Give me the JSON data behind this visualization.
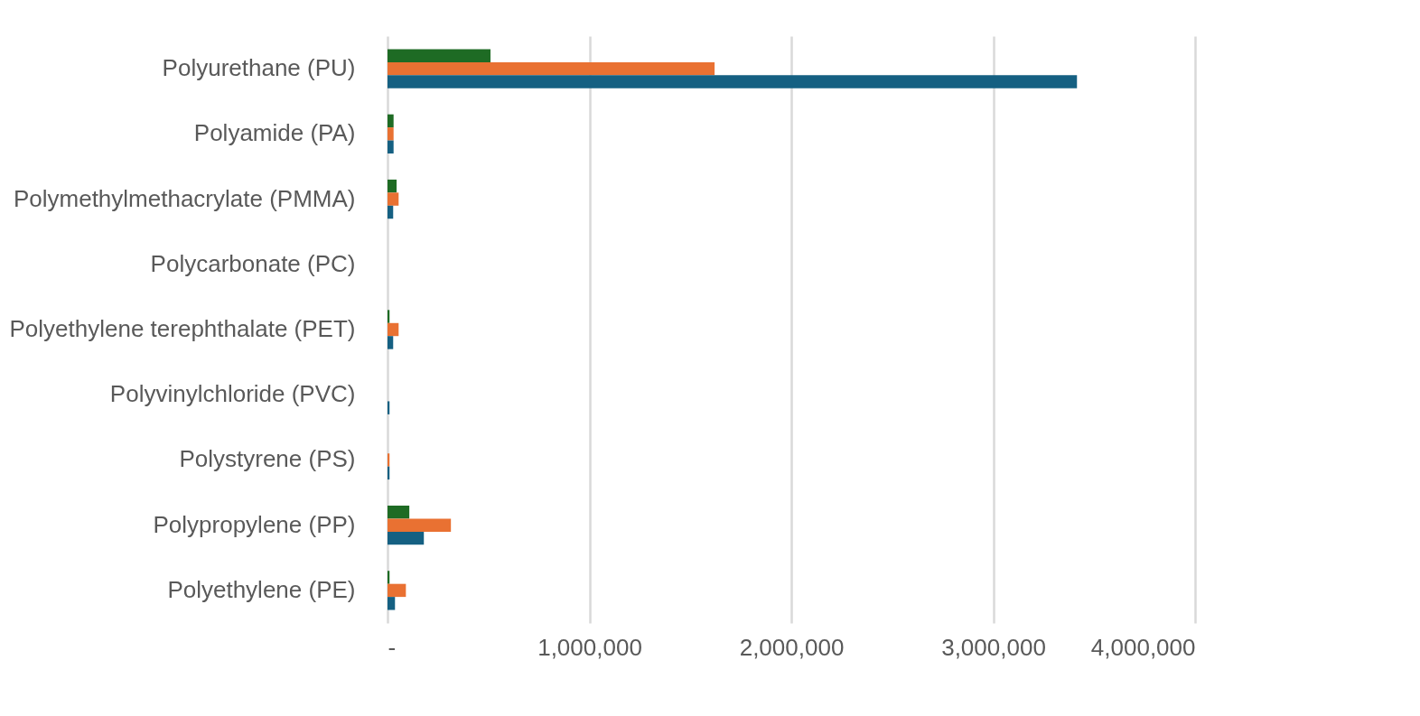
{
  "chart_data": {
    "type": "bar",
    "orientation": "horizontal",
    "categories": [
      "Polyurethane (PU)",
      "Polyamide (PA)",
      "Polymethylmethacrylate (PMMA)",
      "Polycarbonate (PC)",
      "Polyethylene terephthalate (PET)",
      "Polyvinylchloride (PVC)",
      "Polystyrene (PS)",
      "Polypropylene (PP)",
      "Polyethylene (PE)"
    ],
    "series": [
      {
        "color": "#1e6b24",
        "values": [
          510000,
          30000,
          45000,
          0,
          10000,
          0,
          0,
          108000,
          10000
        ]
      },
      {
        "color": "#e97132",
        "values": [
          1620000,
          30000,
          55000,
          0,
          55000,
          0,
          10000,
          314000,
          91000
        ]
      },
      {
        "color": "#156082",
        "values": [
          3415000,
          30000,
          28000,
          0,
          28000,
          10000,
          10000,
          180000,
          37000
        ]
      }
    ],
    "xlim": [
      0,
      4000000
    ],
    "xticks": [
      {
        "value": 0,
        "label": "-"
      },
      {
        "value": 1000000,
        "label": "1,000,000"
      },
      {
        "value": 2000000,
        "label": "2,000,000"
      },
      {
        "value": 3000000,
        "label": "3,000,000"
      },
      {
        "value": 4000000,
        "label": "4,000,000"
      }
    ],
    "grid": "x",
    "legend": false
  }
}
